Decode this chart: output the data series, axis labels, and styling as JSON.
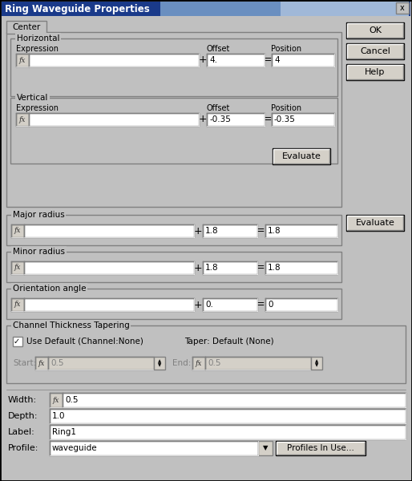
{
  "title": "Ring Waveguide Properties",
  "bg_color": "#c0c0c0",
  "titlebar_gradient_left": "#1a3a8a",
  "titlebar_gradient_right": "#a8b8d8",
  "tab_label": "Center",
  "buttons_right": [
    "OK",
    "Cancel",
    "Help"
  ],
  "evaluate_btn": "Evaluate",
  "horizontal_label": "Horizontal",
  "vertical_label": "Vertical",
  "expr_label": "Expression",
  "offset_label": "Offset",
  "position_label": "Position",
  "h_offset": "4.",
  "h_position": "4",
  "v_offset": "-0.35",
  "v_position": "-0.35",
  "major_radius_label": "Major radius",
  "major_offset": "1.8",
  "major_position": "1.8",
  "minor_radius_label": "Minor radius",
  "minor_offset": "1.8",
  "minor_position": "1.8",
  "orientation_label": "Orientation angle",
  "orient_offset": "0.",
  "orient_position": "0",
  "channel_label": "Channel Thickness Tapering",
  "use_default_text": "Use Default (Channel:None)",
  "taper_text": "Taper: Default (None)",
  "start_label": "Start:",
  "end_label": "End:",
  "start_val": "0.5",
  "end_val": "0.5",
  "width_label": "Width:",
  "width_val": "0.5",
  "depth_label": "Depth:",
  "depth_val": "1.0",
  "lbl_label": "Label:",
  "lbl_val": "Ring1",
  "profile_label": "Profile:",
  "profile_val": "waveguide",
  "profiles_btn": "Profiles In Use..."
}
